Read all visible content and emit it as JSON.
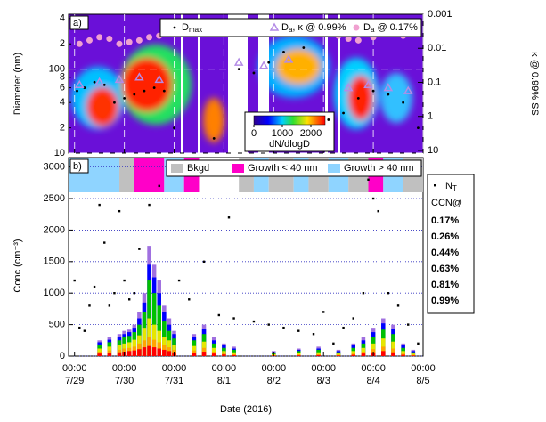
{
  "chart_data": [
    {
      "type": "scatter",
      "panel_label": "a)",
      "ylabel": "Diameter (nm)",
      "y2label": "κ @ 0.99% SS",
      "xlim": [
        -0.12,
        7
      ],
      "xticks": [
        0,
        1,
        2,
        3,
        4,
        5,
        6,
        7
      ],
      "ylim": [
        10,
        450
      ],
      "log_y": true,
      "yticks": [
        10,
        {
          "value": 20,
          "label": "2"
        },
        {
          "value": 40,
          "label": "4"
        },
        {
          "value": 60,
          "label": "6"
        },
        {
          "value": 80,
          "label": "8"
        },
        100,
        {
          "value": 200,
          "label": "2"
        },
        {
          "value": 400,
          "label": "4"
        }
      ],
      "y2lim": [
        0.001,
        12
      ],
      "log_y2": true,
      "y2_reversed": true,
      "y2ticks": [
        0.001,
        0.01,
        0.1,
        1,
        10
      ],
      "colorbar": {
        "label": "dN/dlogD",
        "lim": [
          0,
          2500
        ],
        "ticks": [
          0,
          1000,
          2000
        ]
      },
      "series": [
        {
          "name": "Dmax",
          "marker": "dot",
          "color": "#000000",
          "x": [
            0.05,
            0.2,
            0.4,
            0.6,
            0.8,
            1.0,
            1.2,
            1.4,
            1.6,
            1.8,
            2.0,
            2.8,
            3.3,
            3.6,
            3.9,
            4.2,
            4.4,
            4.6,
            5.1,
            5.4,
            5.7,
            6.0,
            6.3,
            6.6,
            6.9
          ],
          "values": [
            55,
            60,
            70,
            65,
            40,
            45,
            50,
            55,
            60,
            55,
            20,
            15,
            100,
            90,
            120,
            160,
            250,
            180,
            25,
            30,
            45,
            55,
            50,
            40,
            20
          ]
        },
        {
          "name": "Da, κ @ 0.99%",
          "marker": "triangle",
          "color": "#b48ce6",
          "x": [
            0.1,
            0.5,
            0.9,
            1.3,
            1.7,
            3.3,
            3.8,
            4.3,
            5.5,
            5.9,
            6.3,
            6.7
          ],
          "values": [
            65,
            70,
            75,
            80,
            75,
            120,
            110,
            130,
            60,
            65,
            60,
            55
          ]
        },
        {
          "name": "Da @ 0.17%",
          "marker": "circle",
          "color": "#f0a0d0",
          "x": [
            0.1,
            0.3,
            0.5,
            0.7,
            0.9,
            1.1,
            1.3,
            1.5,
            1.7,
            4.6,
            5.3,
            5.5,
            5.7,
            6.0,
            6.3,
            6.6
          ],
          "values": [
            200,
            220,
            240,
            230,
            200,
            210,
            220,
            240,
            250,
            300,
            250,
            230,
            220,
            240,
            260,
            250
          ]
        }
      ]
    },
    {
      "type": "bar",
      "panel_label": "b)",
      "ylabel": "Conc (cm⁻³)",
      "xlabel": "Date (2016)",
      "xlim": [
        -0.12,
        7
      ],
      "xticks": [
        {
          "value": 0,
          "label": "00:00 7/29"
        },
        {
          "value": 1,
          "label": "00:00 7/30"
        },
        {
          "value": 2,
          "label": "00:00 7/31"
        },
        {
          "value": 3,
          "label": "00:00 8/1"
        },
        {
          "value": 4,
          "label": "00:00 8/2"
        },
        {
          "value": 5,
          "label": "00:00 8/3"
        },
        {
          "value": 6,
          "label": "00:00 8/4"
        },
        {
          "value": 7,
          "label": "00:00 8/5"
        }
      ],
      "ylim": [
        0,
        3150
      ],
      "yticks": [
        0,
        500,
        1000,
        1500,
        2000,
        2500,
        3000
      ],
      "grid": true,
      "classes": [
        {
          "name": "Bkgd",
          "color": "#c0c0c0"
        },
        {
          "name": "Growth < 40 nm",
          "color": "#ff00c8"
        },
        {
          "name": "Growth > 40 nm",
          "color": "#8fd4ff"
        }
      ],
      "periods": [
        {
          "x0": -0.12,
          "x1": 0.9,
          "class": 2
        },
        {
          "x0": 0.9,
          "x1": 1.2,
          "class": 0
        },
        {
          "x0": 1.2,
          "x1": 1.8,
          "class": 1
        },
        {
          "x0": 1.8,
          "x1": 2.2,
          "class": 2
        },
        {
          "x0": 2.2,
          "x1": 2.5,
          "class": 1
        },
        {
          "x0": 3.3,
          "x1": 3.6,
          "class": 0
        },
        {
          "x0": 3.6,
          "x1": 3.9,
          "class": 2
        },
        {
          "x0": 3.9,
          "x1": 4.4,
          "class": 0
        },
        {
          "x0": 4.4,
          "x1": 4.7,
          "class": 2
        },
        {
          "x0": 4.7,
          "x1": 5.1,
          "class": 0
        },
        {
          "x0": 5.1,
          "x1": 5.5,
          "class": 2
        },
        {
          "x0": 5.5,
          "x1": 5.9,
          "class": 0
        },
        {
          "x0": 5.9,
          "x1": 6.2,
          "class": 1
        },
        {
          "x0": 6.2,
          "x1": 6.6,
          "class": 2
        },
        {
          "x0": 6.6,
          "x1": 7.0,
          "class": 0
        }
      ],
      "legend_title": "CCN@",
      "x": [
        0.5,
        0.7,
        0.9,
        1.0,
        1.1,
        1.2,
        1.3,
        1.4,
        1.5,
        1.6,
        1.7,
        1.8,
        1.9,
        2.0,
        2.4,
        2.6,
        2.8,
        3.0,
        3.2,
        4.0,
        4.5,
        4.9,
        5.3,
        5.6,
        5.8,
        6.0,
        6.2,
        6.4,
        6.6,
        6.8
      ],
      "series": [
        {
          "name": "0.17%",
          "color": "#ff0000",
          "values": [
            40,
            50,
            60,
            70,
            80,
            90,
            110,
            140,
            160,
            140,
            120,
            100,
            80,
            60,
            50,
            70,
            40,
            25,
            15,
            8,
            12,
            15,
            10,
            20,
            40,
            60,
            80,
            60,
            20,
            10
          ]
        },
        {
          "name": "0.26%",
          "color": "#ffa500",
          "values": [
            70,
            90,
            100,
            120,
            130,
            150,
            200,
            250,
            300,
            260,
            220,
            170,
            140,
            100,
            90,
            130,
            70,
            40,
            30,
            15,
            25,
            30,
            20,
            40,
            70,
            110,
            150,
            120,
            40,
            20
          ]
        },
        {
          "name": "0.44%",
          "color": "#e6e600",
          "values": [
            120,
            150,
            170,
            200,
            220,
            260,
            330,
            450,
            600,
            500,
            400,
            300,
            250,
            180,
            160,
            230,
            130,
            80,
            60,
            30,
            50,
            60,
            40,
            80,
            130,
            200,
            280,
            230,
            80,
            40
          ]
        },
        {
          "name": "0.63%",
          "color": "#00c000",
          "values": [
            180,
            220,
            250,
            300,
            320,
            380,
            500,
            700,
            1200,
            1000,
            800,
            550,
            400,
            280,
            250,
            350,
            200,
            130,
            100,
            50,
            80,
            100,
            60,
            130,
            200,
            300,
            420,
            350,
            130,
            60
          ]
        },
        {
          "name": "0.81%",
          "color": "#0000ff",
          "values": [
            220,
            260,
            300,
            350,
            380,
            450,
            600,
            850,
            1450,
            1250,
            1000,
            700,
            500,
            350,
            300,
            430,
            250,
            170,
            120,
            60,
            100,
            120,
            80,
            170,
            250,
            380,
            520,
            430,
            170,
            80
          ]
        },
        {
          "name": "0.99%",
          "color": "#a070e0",
          "values": [
            250,
            300,
            350,
            400,
            420,
            500,
            700,
            1000,
            1750,
            1450,
            1200,
            800,
            600,
            400,
            350,
            500,
            300,
            200,
            150,
            80,
            120,
            150,
            100,
            200,
            300,
            450,
            600,
            500,
            200,
            100
          ]
        }
      ],
      "total": {
        "name": "NT",
        "color": "#000000",
        "x": [
          0.0,
          0.1,
          0.2,
          0.3,
          0.4,
          0.5,
          0.6,
          0.7,
          0.8,
          0.9,
          1.0,
          1.1,
          1.2,
          1.3,
          1.5,
          1.7,
          1.9,
          2.1,
          2.3,
          2.6,
          2.9,
          3.1,
          3.2,
          3.6,
          3.9,
          4.2,
          4.5,
          4.8,
          5.0,
          5.2,
          5.4,
          5.6,
          5.8,
          5.9,
          6.0,
          6.1,
          6.3,
          6.5,
          6.7,
          6.9
        ],
        "values": [
          1200,
          450,
          400,
          800,
          1100,
          2400,
          1800,
          800,
          1000,
          2300,
          1200,
          900,
          1000,
          1700,
          2400,
          2700,
          2900,
          1200,
          900,
          1500,
          650,
          2200,
          600,
          550,
          500,
          450,
          400,
          350,
          700,
          200,
          450,
          600,
          1000,
          2800,
          2500,
          2300,
          1000,
          800,
          500,
          200
        ]
      }
    }
  ]
}
